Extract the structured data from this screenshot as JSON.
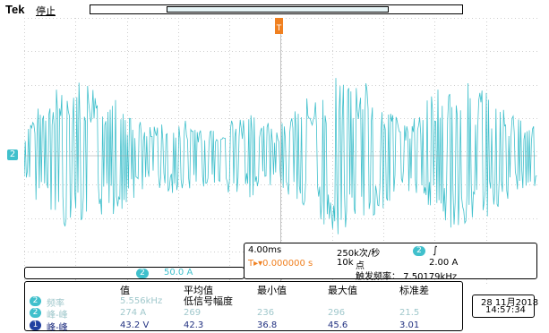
{
  "header": {
    "brand": "Tek",
    "state": "停止"
  },
  "trigger_marker": "T",
  "channel_marker": "2",
  "scale": {
    "channel": "2",
    "value": "50.0 A"
  },
  "horizontal": {
    "scale": "4.00ms",
    "sample_rate": "250k次/秒",
    "points": "10k",
    "points_label": "点",
    "trigger_position": "T▸▾0.000000 s"
  },
  "trigger": {
    "channel": "2",
    "edge": "∫",
    "level": "2.00 A",
    "frequency": "触发频率： 7.50179kHz"
  },
  "measurements": {
    "headers": {
      "value": "值",
      "mean": "平均值",
      "min": "最小值",
      "max": "最大值",
      "std": "标准差",
      "low_amp": "低信号幅度"
    },
    "rows": [
      {
        "channel": "2",
        "label": "频率",
        "value": "5.556kHz",
        "mean": "",
        "min": "",
        "max": "",
        "std": "",
        "style": "grey"
      },
      {
        "channel": "2",
        "label": "峰-峰",
        "value": "274 A",
        "mean": "269",
        "min": "236",
        "max": "296",
        "std": "21.5",
        "style": "grey"
      },
      {
        "channel": "1",
        "label": "峰-峰",
        "value": "43.2 V",
        "mean": "42.3",
        "min": "36.8",
        "max": "45.6",
        "std": "3.01",
        "style": "blue"
      }
    ]
  },
  "datetime": {
    "date": "28 11月2018",
    "time": "14:57:34"
  },
  "colors": {
    "ch2": "#40c0cc",
    "ch1": "#2040a0",
    "trigger": "#f08020"
  }
}
